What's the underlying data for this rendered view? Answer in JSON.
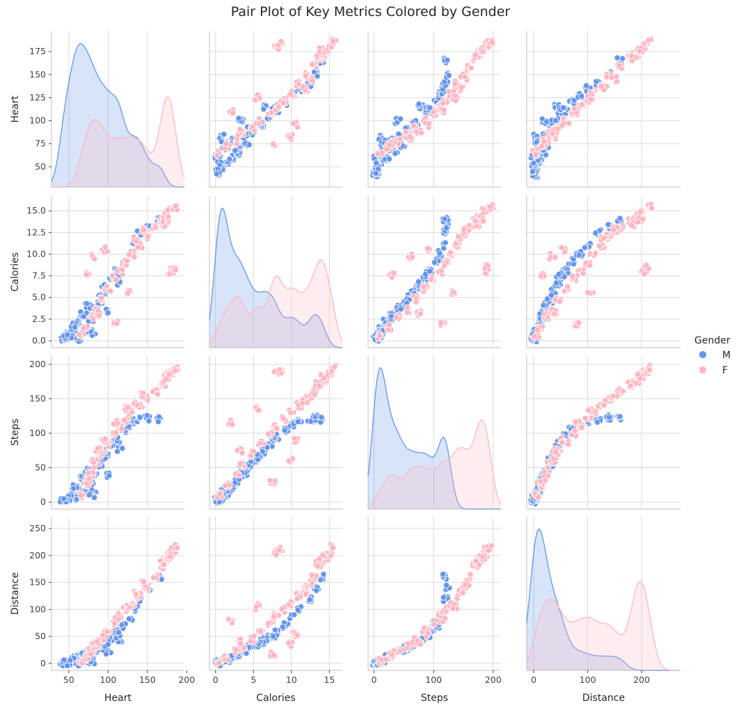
{
  "title": "Pair Plot of Key Metrics Colored by Gender",
  "legend": {
    "title": "Gender",
    "entries": [
      {
        "label": "M",
        "color": "#6495ED"
      },
      {
        "label": "F",
        "color": "#FFB6C1"
      }
    ]
  },
  "chart_data": {
    "type": "scatter",
    "kind": "pairplot",
    "diag_kind": "kde",
    "hue": "Gender",
    "variables": [
      {
        "name": "Heart",
        "ticks": [
          50,
          100,
          150,
          200
        ],
        "ylim_ticks": [
          50,
          75,
          100,
          125,
          150,
          175
        ],
        "range": [
          28,
          197
        ]
      },
      {
        "name": "Calories",
        "ticks": [
          0,
          5,
          10,
          15
        ],
        "ylim_ticks": [
          0.0,
          2.5,
          5.0,
          7.5,
          10.0,
          12.5,
          15.0
        ],
        "range": [
          -0.8,
          16.7
        ]
      },
      {
        "name": "Steps",
        "ticks": [
          0,
          100,
          200
        ],
        "ylim_ticks": [
          0,
          50,
          100,
          150,
          200
        ],
        "range": [
          -10,
          213
        ]
      },
      {
        "name": "Distance",
        "ticks": [
          0,
          100,
          200
        ],
        "ylim_ticks": [
          0,
          50,
          100,
          150,
          200,
          250
        ],
        "range": [
          -13,
          272
        ]
      }
    ],
    "series": [
      {
        "name": "M",
        "color": "#6495ED",
        "description_points": {
          "Heart": [
            42,
            48,
            55,
            60,
            63,
            66,
            70,
            74,
            78,
            82,
            88,
            95,
            100,
            105,
            110,
            115,
            120,
            128,
            135,
            140,
            150,
            165,
            62,
            58,
            52,
            70,
            90,
            76,
            84,
            45,
            98,
            112
          ],
          "Calories": [
            0.3,
            0.8,
            1.5,
            2.2,
            0.5,
            3.0,
            1.2,
            4.1,
            2.5,
            0.9,
            5.0,
            6.2,
            3.3,
            7.1,
            8.0,
            6.5,
            9.2,
            10.1,
            11.0,
            12.5,
            13.2,
            14.0,
            0.2,
            1.8,
            0.6,
            2.9,
            4.5,
            1.1,
            3.8,
            0.4,
            5.6,
            7.7
          ],
          "Steps": [
            2,
            5,
            12,
            20,
            8,
            35,
            15,
            48,
            28,
            10,
            60,
            72,
            40,
            85,
            95,
            78,
            105,
            112,
            118,
            120,
            122,
            120,
            3,
            22,
            6,
            30,
            55,
            14,
            42,
            4,
            66,
            90
          ],
          "Distance": [
            1,
            2,
            6,
            10,
            3,
            18,
            7,
            25,
            14,
            4,
            32,
            40,
            20,
            48,
            58,
            44,
            70,
            85,
            100,
            120,
            140,
            160,
            0,
            11,
            2,
            15,
            30,
            5,
            22,
            1,
            36,
            52
          ]
        }
      },
      {
        "name": "F",
        "color": "#FFB6C1",
        "description_points": {
          "Heart": [
            65,
            72,
            78,
            85,
            92,
            100,
            108,
            115,
            122,
            130,
            140,
            150,
            160,
            168,
            172,
            175,
            178,
            180,
            183,
            186,
            82,
            96,
            110,
            125,
            75,
            88,
            135,
            145,
            170,
            176
          ],
          "Calories": [
            0.5,
            1.5,
            2.8,
            3.5,
            4.8,
            6.0,
            7.2,
            8.0,
            9.0,
            10.0,
            11.0,
            12.0,
            13.0,
            13.8,
            14.2,
            14.6,
            15.0,
            8.0,
            8.5,
            15.5,
            9.8,
            10.5,
            2.0,
            5.5,
            7.5,
            3.2,
            11.8,
            12.8,
            13.5,
            14.0
          ],
          "Steps": [
            10,
            25,
            40,
            55,
            70,
            85,
            100,
            110,
            120,
            130,
            140,
            150,
            160,
            170,
            175,
            180,
            185,
            188,
            190,
            195,
            60,
            90,
            115,
            135,
            30,
            75,
            145,
            155,
            172,
            182
          ],
          "Distance": [
            4,
            12,
            22,
            30,
            45,
            60,
            75,
            88,
            100,
            110,
            125,
            140,
            160,
            180,
            190,
            195,
            200,
            205,
            210,
            215,
            35,
            55,
            80,
            105,
            18,
            40,
            130,
            150,
            185,
            198
          ]
        }
      }
    ]
  }
}
